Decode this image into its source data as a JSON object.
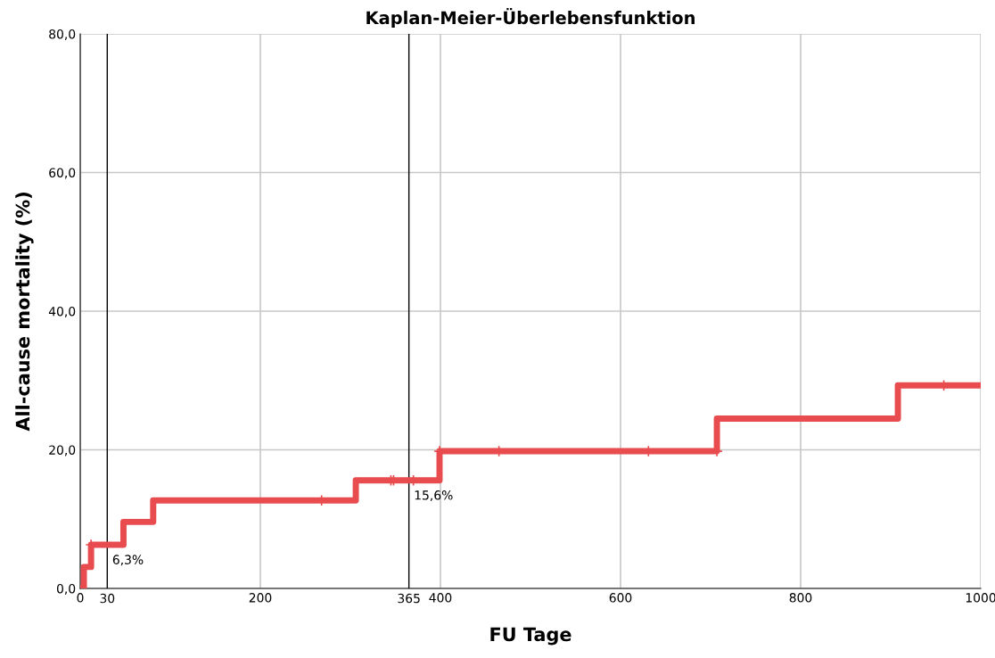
{
  "chart_data": {
    "type": "step",
    "title": "Kaplan-Meier-Überlebensfunktion",
    "xlabel": "FU Tage",
    "ylabel": "All-cause mortality (%)",
    "series": [
      {
        "color": "#e84c4f",
        "x": [
          0,
          4,
          12,
          48,
          81,
          306,
          399,
          707,
          908,
          1000
        ],
        "values": [
          0,
          3.1,
          6.3,
          9.6,
          12.7,
          15.6,
          19.8,
          24.5,
          29.3,
          29.3
        ]
      },
      {
        "type": "scatter",
        "marker": "cross",
        "color": "#e84c4f",
        "x": [
          12,
          268,
          345,
          348,
          370,
          399,
          465,
          631,
          707,
          959
        ],
        "values": [
          6.3,
          12.7,
          15.6,
          15.6,
          15.6,
          19.8,
          19.8,
          19.8,
          19.8,
          29.3
        ]
      }
    ],
    "xlim": [
      0,
      1000
    ],
    "xticks": [
      0,
      200,
      400,
      600,
      800,
      1000
    ],
    "ylim": [
      0,
      80
    ],
    "yticks": [
      {
        "value": 0,
        "label": "0,0"
      },
      {
        "value": 20,
        "label": "20,0"
      },
      {
        "value": 40,
        "label": "40,0"
      },
      {
        "value": 60,
        "label": "60,0"
      },
      {
        "value": 80,
        "label": "80,0"
      }
    ],
    "grid": true,
    "ref_lines": [
      {
        "axis": "x",
        "value": 30,
        "label": "30",
        "color": "#000000"
      },
      {
        "axis": "x",
        "value": 365,
        "label": "365",
        "color": "#000000"
      }
    ],
    "annotations": [
      {
        "text": "6,3%",
        "x": 30,
        "y": 6.3
      },
      {
        "text": "15,6%",
        "x": 365,
        "y": 15.6
      }
    ]
  }
}
